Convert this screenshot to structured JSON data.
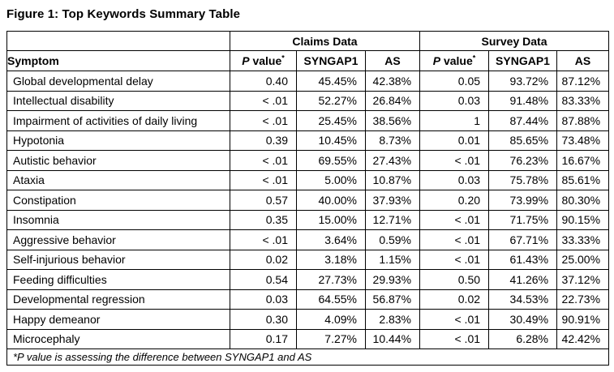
{
  "title": "Figure 1: Top Keywords Summary Table",
  "table": {
    "groups": [
      "Claims Data",
      "Survey Data"
    ],
    "symptom_header": "Symptom",
    "p_header": {
      "italic": "P",
      "rest": " value",
      "sup": "*"
    },
    "sub_headers": {
      "syngap1": "SYNGAP1",
      "as": "AS"
    },
    "rows": [
      [
        "Global developmental delay",
        "0.40",
        "45.45%",
        "42.38%",
        "0.05",
        "93.72%",
        "87.12%"
      ],
      [
        "Intellectual disability",
        "< .01",
        "52.27%",
        "26.84%",
        "0.03",
        "91.48%",
        "83.33%"
      ],
      [
        "Impairment of activities of daily living",
        "< .01",
        "25.45%",
        "38.56%",
        "1",
        "87.44%",
        "87.88%"
      ],
      [
        "Hypotonia",
        "0.39",
        "10.45%",
        "8.73%",
        "0.01",
        "85.65%",
        "73.48%"
      ],
      [
        "Autistic behavior",
        "< .01",
        "69.55%",
        "27.43%",
        "< .01",
        "76.23%",
        "16.67%"
      ],
      [
        "Ataxia",
        "< .01",
        "5.00%",
        "10.87%",
        "0.03",
        "75.78%",
        "85.61%"
      ],
      [
        "Constipation",
        "0.57",
        "40.00%",
        "37.93%",
        "0.20",
        "73.99%",
        "80.30%"
      ],
      [
        "Insomnia",
        "0.35",
        "15.00%",
        "12.71%",
        "< .01",
        "71.75%",
        "90.15%"
      ],
      [
        "Aggressive behavior",
        "< .01",
        "3.64%",
        "0.59%",
        "< .01",
        "67.71%",
        "33.33%"
      ],
      [
        "Self-injurious behavior",
        "0.02",
        "3.18%",
        "1.15%",
        "< .01",
        "61.43%",
        "25.00%"
      ],
      [
        "Feeding difficulties",
        "0.54",
        "27.73%",
        "29.93%",
        "0.50",
        "41.26%",
        "37.12%"
      ],
      [
        "Developmental regression",
        "0.03",
        "64.55%",
        "56.87%",
        "0.02",
        "34.53%",
        "22.73%"
      ],
      [
        "Happy demeanor",
        "0.30",
        "4.09%",
        "2.83%",
        "< .01",
        "30.49%",
        "90.91%"
      ],
      [
        "Microcephaly",
        "0.17",
        "7.27%",
        "10.44%",
        "< .01",
        "6.28%",
        "42.42%"
      ]
    ],
    "footnote": "*P value is assessing the difference between SYNGAP1 and AS"
  },
  "colors": {
    "text": "#000000",
    "border": "#000000",
    "group_divider": "#a6a6a6",
    "background": "#ffffff"
  }
}
